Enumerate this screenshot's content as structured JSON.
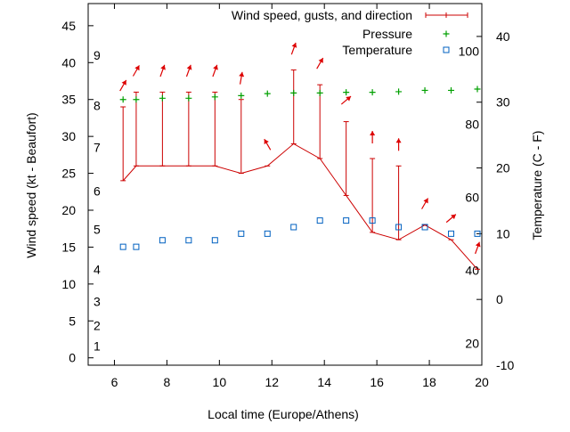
{
  "chart_data": {
    "type": "line",
    "xlabel": "Local time (Europe/Athens)",
    "ylabel": "Wind speed (kt - Beaufort)",
    "y2label": "Temperature (C - F)",
    "xlim": [
      5,
      20
    ],
    "ylim": [
      -1,
      48
    ],
    "y2lim": [
      -10,
      45
    ],
    "x_ticks": [
      "6",
      "8",
      "10",
      "12",
      "14",
      "16",
      "18",
      "20"
    ],
    "y_ticks": [
      "0",
      "5",
      "10",
      "15",
      "20",
      "25",
      "30",
      "35",
      "40",
      "45"
    ],
    "y2_ticks": [
      "-10",
      "0",
      "10",
      "20",
      "30",
      "40"
    ],
    "beaufort_labels": [
      "1",
      "2",
      "3",
      "4",
      "5",
      "6",
      "7",
      "8",
      "9"
    ],
    "fahrenheit_labels": [
      "20",
      "40",
      "60",
      "80",
      "100"
    ],
    "legend_position": "top-right",
    "legend": [
      {
        "label": "Wind speed, gusts, and direction",
        "marker": "errorbar",
        "color": "#cc0000"
      },
      {
        "label": "Pressure",
        "marker": "plus",
        "color": "#00a000"
      },
      {
        "label": "Temperature",
        "marker": "square",
        "color": "#0060c0"
      }
    ],
    "series": [
      {
        "name": "Wind speed, gusts, and direction",
        "x": [
          6.33,
          6.83,
          7.83,
          8.83,
          9.83,
          10.83,
          11.83,
          12.83,
          13.83,
          14.83,
          15.83,
          16.83,
          17.83,
          18.83,
          19.83
        ],
        "values": [
          24,
          26,
          26,
          26,
          26,
          25,
          26,
          29,
          27,
          22,
          17,
          16,
          18,
          16,
          12
        ],
        "gusts": [
          34,
          36,
          36,
          36,
          36,
          35,
          null,
          39,
          37,
          32,
          27,
          26,
          null,
          null,
          null
        ],
        "direction_deg": [
          210,
          210,
          200,
          200,
          200,
          190,
          150,
          200,
          210,
          230,
          180,
          180,
          210,
          230,
          200
        ]
      },
      {
        "name": "Pressure",
        "x": [
          6.33,
          6.83,
          7.83,
          8.83,
          9.83,
          10.83,
          11.83,
          12.83,
          13.83,
          14.83,
          15.83,
          16.83,
          17.83,
          18.83,
          19.83
        ],
        "values": [
          30.4,
          30.4,
          30.6,
          30.6,
          30.8,
          31.0,
          31.3,
          31.4,
          31.4,
          31.5,
          31.5,
          31.6,
          31.8,
          31.8,
          32.0
        ]
      },
      {
        "name": "Temperature",
        "x": [
          6.33,
          6.83,
          7.83,
          8.83,
          9.83,
          10.83,
          11.83,
          12.83,
          13.83,
          14.83,
          15.83,
          16.83,
          17.83,
          18.83,
          19.83
        ],
        "values": [
          8,
          8,
          9,
          9,
          9,
          10,
          10,
          11,
          12,
          12,
          12,
          11,
          11,
          10,
          10
        ]
      }
    ],
    "colors": {
      "wind": "#cc0000",
      "pressure": "#00a000",
      "temperature": "#0060c0",
      "arrow": "#dd0000"
    }
  }
}
